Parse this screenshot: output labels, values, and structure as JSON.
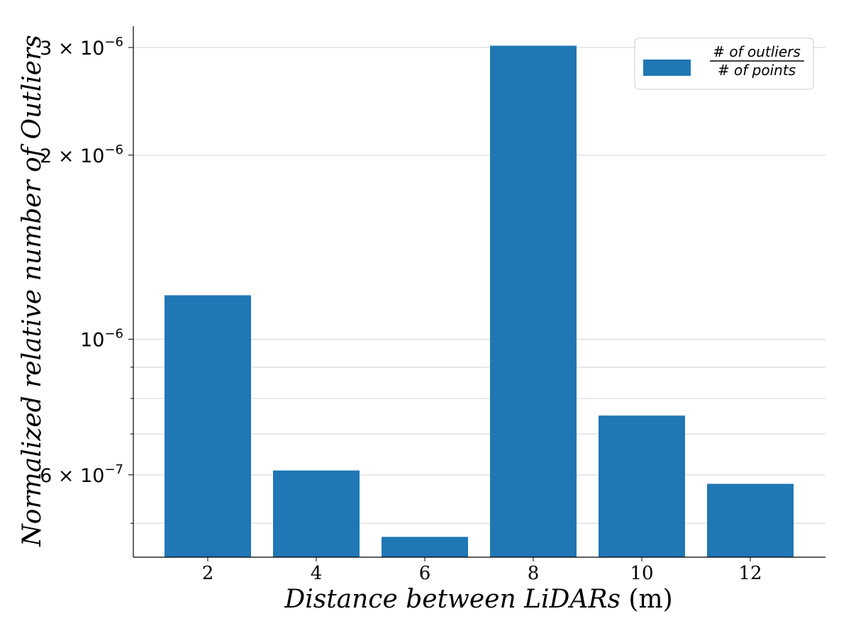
{
  "chart_data": {
    "type": "bar",
    "categories": [
      "2",
      "4",
      "6",
      "8",
      "10",
      "12"
    ],
    "values": [
      1.18e-06,
      6.1e-07,
      4.75e-07,
      3.02e-06,
      7.5e-07,
      5.8e-07
    ],
    "xlabel": "Distance between LiDARs",
    "xlabel_unit": "(m)",
    "ylabel": "Normalized relative number of Outliers",
    "yscale": "log",
    "ylim": [
      4.4e-07,
      3.25e-06
    ],
    "yticks": [
      {
        "value": 6e-07,
        "mantissa": "6 × 10",
        "exp": "−7"
      },
      {
        "value": 1e-06,
        "mantissa": "10",
        "exp": "−6"
      },
      {
        "value": 2e-06,
        "mantissa": "2 × 10",
        "exp": "−6"
      },
      {
        "value": 3e-06,
        "mantissa": "3 × 10",
        "exp": "−6"
      }
    ],
    "minor_gridlines": [
      5e-07,
      7e-07,
      8e-07,
      9e-07
    ],
    "grid": "y",
    "legend": {
      "position": "top-right",
      "numerator": "#  of  outliers",
      "denominator": "#  of  points"
    },
    "colors": {
      "bar": "#1f77b4",
      "grid": "#d3d3d3",
      "axis": "#000000"
    }
  }
}
